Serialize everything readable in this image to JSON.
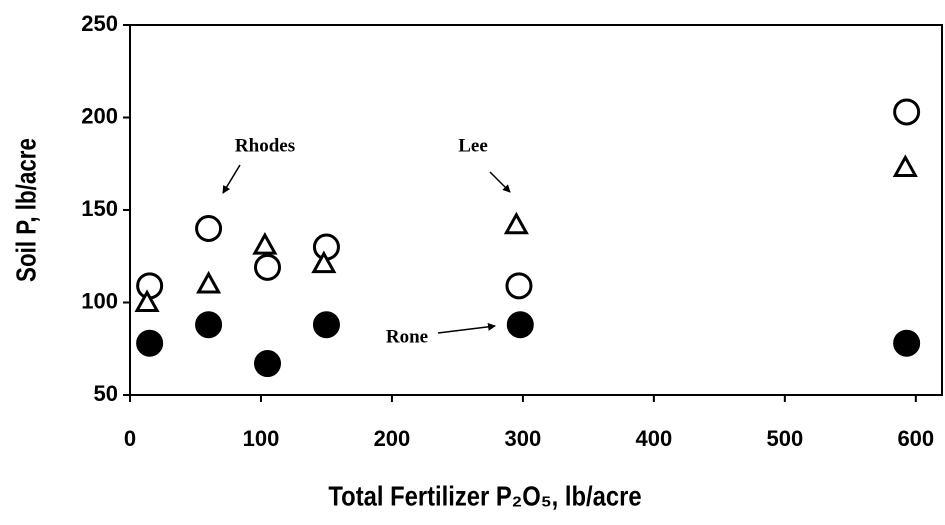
{
  "chart_data": {
    "type": "scatter",
    "x_label": "Total Fertilizer P₂O₅, lb/acre",
    "y_label": "Soil P, lb/acre",
    "xlim": [
      0,
      620
    ],
    "xticks": [
      0,
      100,
      200,
      300,
      400,
      500,
      600
    ],
    "ylim": [
      50,
      250
    ],
    "yticks": [
      50,
      100,
      150,
      200,
      250
    ],
    "grid": false,
    "series": [
      {
        "name": "Rhodes",
        "marker": "open-circle",
        "color": "#000000",
        "x": [
          15,
          60,
          105,
          150,
          297,
          593
        ],
        "values": [
          109,
          140,
          119,
          130,
          109,
          203
        ]
      },
      {
        "name": "Lee",
        "marker": "open-triangle",
        "color": "#000000",
        "x": [
          13,
          60,
          103,
          148,
          295,
          592
        ],
        "values": [
          100,
          110,
          131,
          121,
          142,
          173
        ]
      },
      {
        "name": "Rone",
        "marker": "filled-circle",
        "color": "#000000",
        "x": [
          15,
          60,
          105,
          150,
          298,
          593
        ],
        "values": [
          78,
          88,
          67,
          88,
          88,
          78
        ]
      }
    ]
  }
}
